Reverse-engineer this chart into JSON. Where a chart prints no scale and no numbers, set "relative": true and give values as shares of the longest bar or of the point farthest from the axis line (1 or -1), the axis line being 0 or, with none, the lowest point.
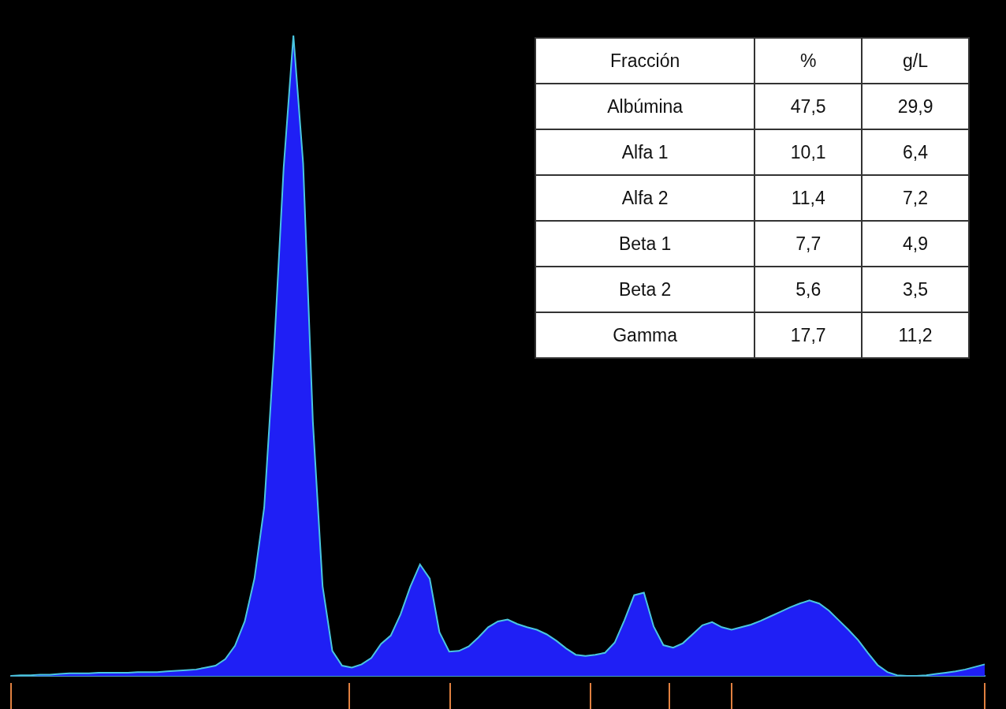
{
  "chart_data": [
    {
      "type": "area",
      "relative": true,
      "legend": false,
      "categories": [
        null,
        null,
        null,
        null,
        null,
        null,
        null,
        null,
        null,
        null,
        null,
        null,
        null,
        null,
        null,
        null,
        null,
        null,
        null,
        null,
        null,
        null,
        null,
        null,
        null,
        null,
        null,
        null,
        null,
        null,
        null,
        null,
        null,
        null,
        null,
        null,
        null,
        null,
        null,
        null,
        null,
        null,
        null,
        null,
        null,
        null,
        null,
        null,
        null,
        null,
        null,
        null,
        null,
        null,
        null,
        null,
        null,
        null,
        null,
        null,
        null,
        null,
        null,
        null,
        null,
        null,
        null,
        null,
        null,
        null,
        null,
        null,
        null,
        null,
        null,
        null,
        null,
        null,
        null,
        null,
        null,
        null,
        null,
        null,
        null,
        null,
        null,
        null,
        null,
        null,
        null,
        null,
        null,
        null,
        null,
        null,
        null,
        null,
        null,
        null,
        null
      ],
      "series": [
        {
          "color": "#1f1ff5",
          "values": [
            0,
            0.001,
            0.001,
            0.002,
            0.002,
            0.003,
            0.004,
            0.004,
            0.004,
            0.005,
            0.005,
            0.005,
            0.005,
            0.006,
            0.006,
            0.006,
            0.007,
            0.008,
            0.009,
            0.01,
            0.013,
            0.016,
            0.026,
            0.047,
            0.085,
            0.152,
            0.263,
            0.505,
            0.794,
            1,
            0.8,
            0.397,
            0.14,
            0.039,
            0.016,
            0.013,
            0.018,
            0.028,
            0.05,
            0.063,
            0.096,
            0.139,
            0.174,
            0.152,
            0.068,
            0.038,
            0.039,
            0.046,
            0.06,
            0.076,
            0.085,
            0.088,
            0.081,
            0.076,
            0.072,
            0.065,
            0.055,
            0.043,
            0.033,
            0.031,
            0.033,
            0.036,
            0.052,
            0.087,
            0.126,
            0.13,
            0.077,
            0.048,
            0.044,
            0.051,
            0.065,
            0.079,
            0.084,
            0.076,
            0.072,
            0.076,
            0.08,
            0.086,
            0.093,
            0.1,
            0.107,
            0.113,
            0.118,
            0.113,
            0.102,
            0.087,
            0.072,
            0.056,
            0.036,
            0.017,
            0.006,
            0.001,
            0,
            0,
            0.001,
            0.003,
            0.005,
            0.007,
            0.01,
            0.014,
            0.018
          ]
        }
      ]
    },
    {
      "type": "other",
      "xlabel": "Fracción",
      "categories": [
        "Albúmina",
        "Alfa 1",
        "Alfa 2",
        "Beta 1",
        "Beta 2",
        "Gamma"
      ],
      "series": [
        {
          "name": "%",
          "values": [
            47.5,
            10.1,
            11.4,
            7.7,
            5.6,
            17.7
          ],
          "value_labels": [
            "47,5",
            "10,1",
            "11,4",
            "7,7",
            "5,6",
            "17,7"
          ]
        },
        {
          "name": "g/L",
          "values": [
            29.9,
            6.4,
            7.2,
            4.9,
            3.5,
            11.2
          ],
          "value_labels": [
            "29,9",
            "6,4",
            "7,2",
            "4,9",
            "3,5",
            "11,2"
          ]
        }
      ]
    }
  ]
}
